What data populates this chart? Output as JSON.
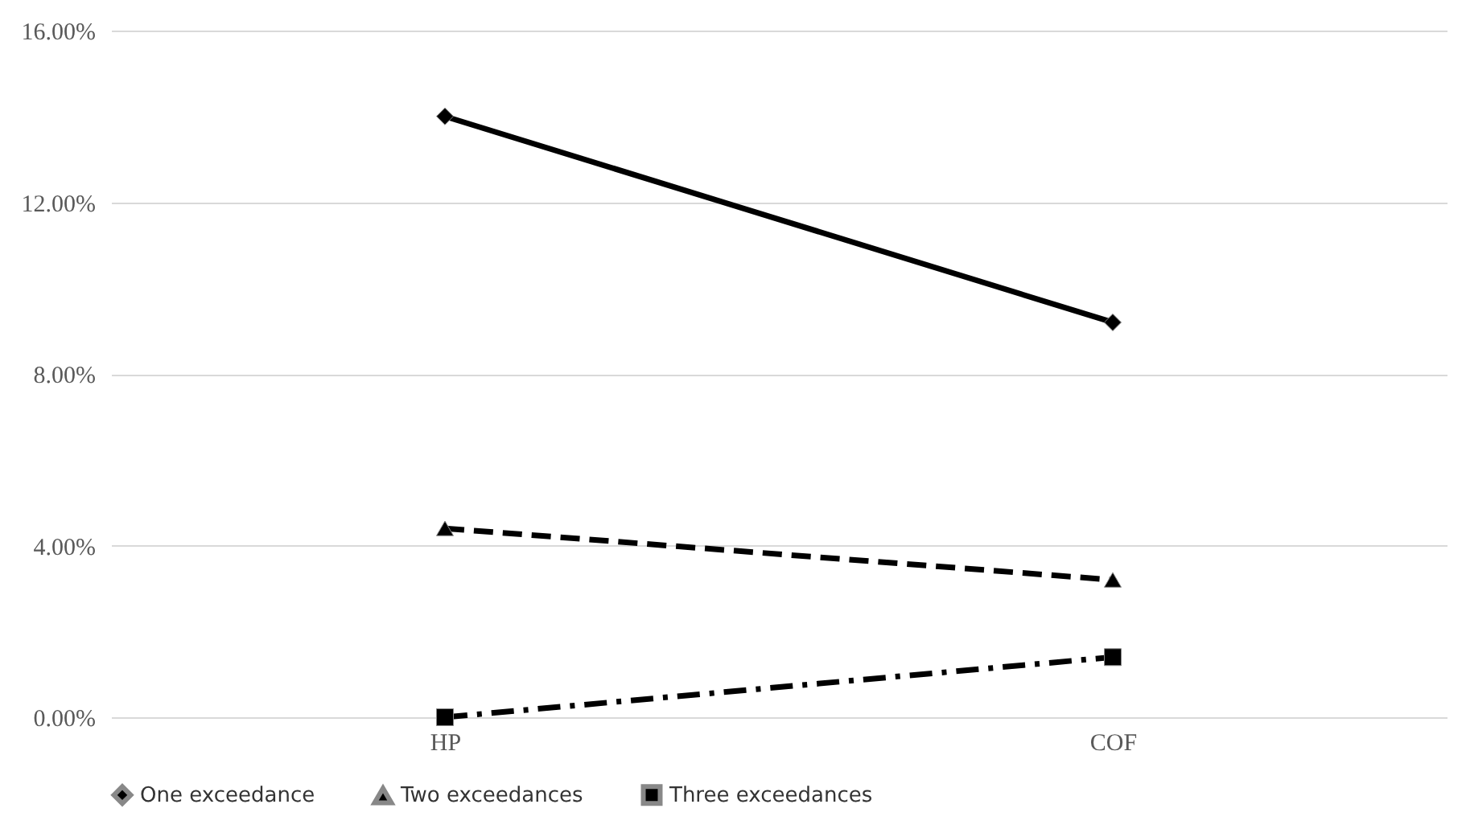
{
  "chart_data": {
    "type": "line",
    "categories": [
      "HP",
      "COF"
    ],
    "series": [
      {
        "name": "One exceedance",
        "color": "#000000",
        "values": [
          14.0,
          9.2
        ],
        "marker": "diamond",
        "line_style": "solid"
      },
      {
        "name": "Two exceedances",
        "color": "#000000",
        "values": [
          4.4,
          3.2
        ],
        "marker": "triangle",
        "line_style": "dashed"
      },
      {
        "name": "Three exceedances",
        "color": "#000000",
        "values": [
          0.0,
          1.4
        ],
        "marker": "square",
        "line_style": "dotted"
      }
    ],
    "ylim": [
      0,
      16
    ],
    "yticks": [
      {
        "value": 0,
        "label": "0.00%"
      },
      {
        "value": 4,
        "label": "4.00%"
      },
      {
        "value": 8,
        "label": "8.00%"
      },
      {
        "value": 12,
        "label": "12.00%"
      },
      {
        "value": 16,
        "label": "16.00%"
      }
    ],
    "grid": "y",
    "legend": "bottom"
  }
}
